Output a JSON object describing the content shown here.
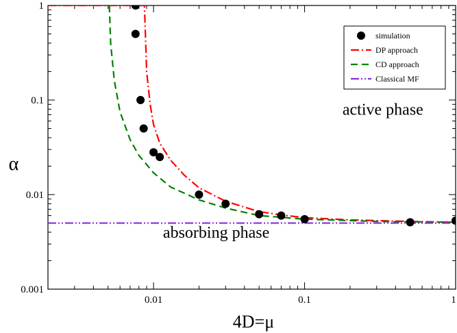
{
  "chart_data": {
    "type": "scatter",
    "xlabel": "4D=μ",
    "ylabel": "α",
    "xscale": "log",
    "yscale": "log",
    "xlim": [
      0.002,
      1
    ],
    "ylim": [
      0.001,
      1
    ],
    "x_ticks": [
      {
        "v": 0.01,
        "label": "0.01"
      },
      {
        "v": 0.1,
        "label": "0.1"
      },
      {
        "v": 1,
        "label": "1"
      }
    ],
    "y_ticks": [
      {
        "v": 0.001,
        "label": "0.001"
      },
      {
        "v": 0.01,
        "label": "0.01"
      },
      {
        "v": 0.1,
        "label": "0.1"
      },
      {
        "v": 1,
        "label": "1"
      }
    ],
    "grid": false,
    "legend_position": "top-right",
    "annotations": [
      {
        "text": "active phase",
        "x": 0.33,
        "y": 0.07
      },
      {
        "text": "absorbing phase",
        "x": 0.026,
        "y": 0.0035
      }
    ],
    "series": [
      {
        "name": "simulation",
        "kind": "markers",
        "color": "#000000",
        "points": [
          [
            0.0076,
            1.0
          ],
          [
            0.0076,
            0.5
          ],
          [
            0.0082,
            0.1
          ],
          [
            0.0086,
            0.05
          ],
          [
            0.01,
            0.028
          ],
          [
            0.011,
            0.025
          ],
          [
            0.02,
            0.01
          ],
          [
            0.03,
            0.008
          ],
          [
            0.05,
            0.0062
          ],
          [
            0.07,
            0.006
          ],
          [
            0.1,
            0.0055
          ],
          [
            0.5,
            0.0051
          ],
          [
            1.0,
            0.0053
          ]
        ]
      },
      {
        "name": "DP approach",
        "kind": "line",
        "style": "dash-dot",
        "color": "#ff0000",
        "points": [
          [
            0.002,
            1.0
          ],
          [
            0.0087,
            1.0
          ],
          [
            0.0088,
            0.6
          ],
          [
            0.009,
            0.2
          ],
          [
            0.0095,
            0.09
          ],
          [
            0.01,
            0.055
          ],
          [
            0.011,
            0.035
          ],
          [
            0.013,
            0.023
          ],
          [
            0.016,
            0.016
          ],
          [
            0.02,
            0.0118
          ],
          [
            0.03,
            0.0085
          ],
          [
            0.05,
            0.0066
          ],
          [
            0.07,
            0.0061
          ],
          [
            0.1,
            0.0057
          ],
          [
            0.2,
            0.0054
          ],
          [
            0.5,
            0.0052
          ],
          [
            1.0,
            0.0051
          ]
        ]
      },
      {
        "name": "CD approach",
        "kind": "line",
        "style": "dashed",
        "color": "#008000",
        "points": [
          [
            0.0051,
            1.0
          ],
          [
            0.0052,
            0.4
          ],
          [
            0.0055,
            0.16
          ],
          [
            0.006,
            0.075
          ],
          [
            0.007,
            0.038
          ],
          [
            0.008,
            0.026
          ],
          [
            0.01,
            0.017
          ],
          [
            0.013,
            0.012
          ],
          [
            0.02,
            0.0088
          ],
          [
            0.03,
            0.0072
          ],
          [
            0.05,
            0.006
          ],
          [
            0.1,
            0.0055
          ],
          [
            0.3,
            0.0052
          ],
          [
            1.0,
            0.0051
          ]
        ]
      },
      {
        "name": "Classical MF",
        "kind": "line",
        "style": "dash-dot-dot",
        "color": "#8a2be2",
        "points": [
          [
            0.002,
            0.005
          ],
          [
            1.0,
            0.005
          ]
        ]
      }
    ]
  }
}
